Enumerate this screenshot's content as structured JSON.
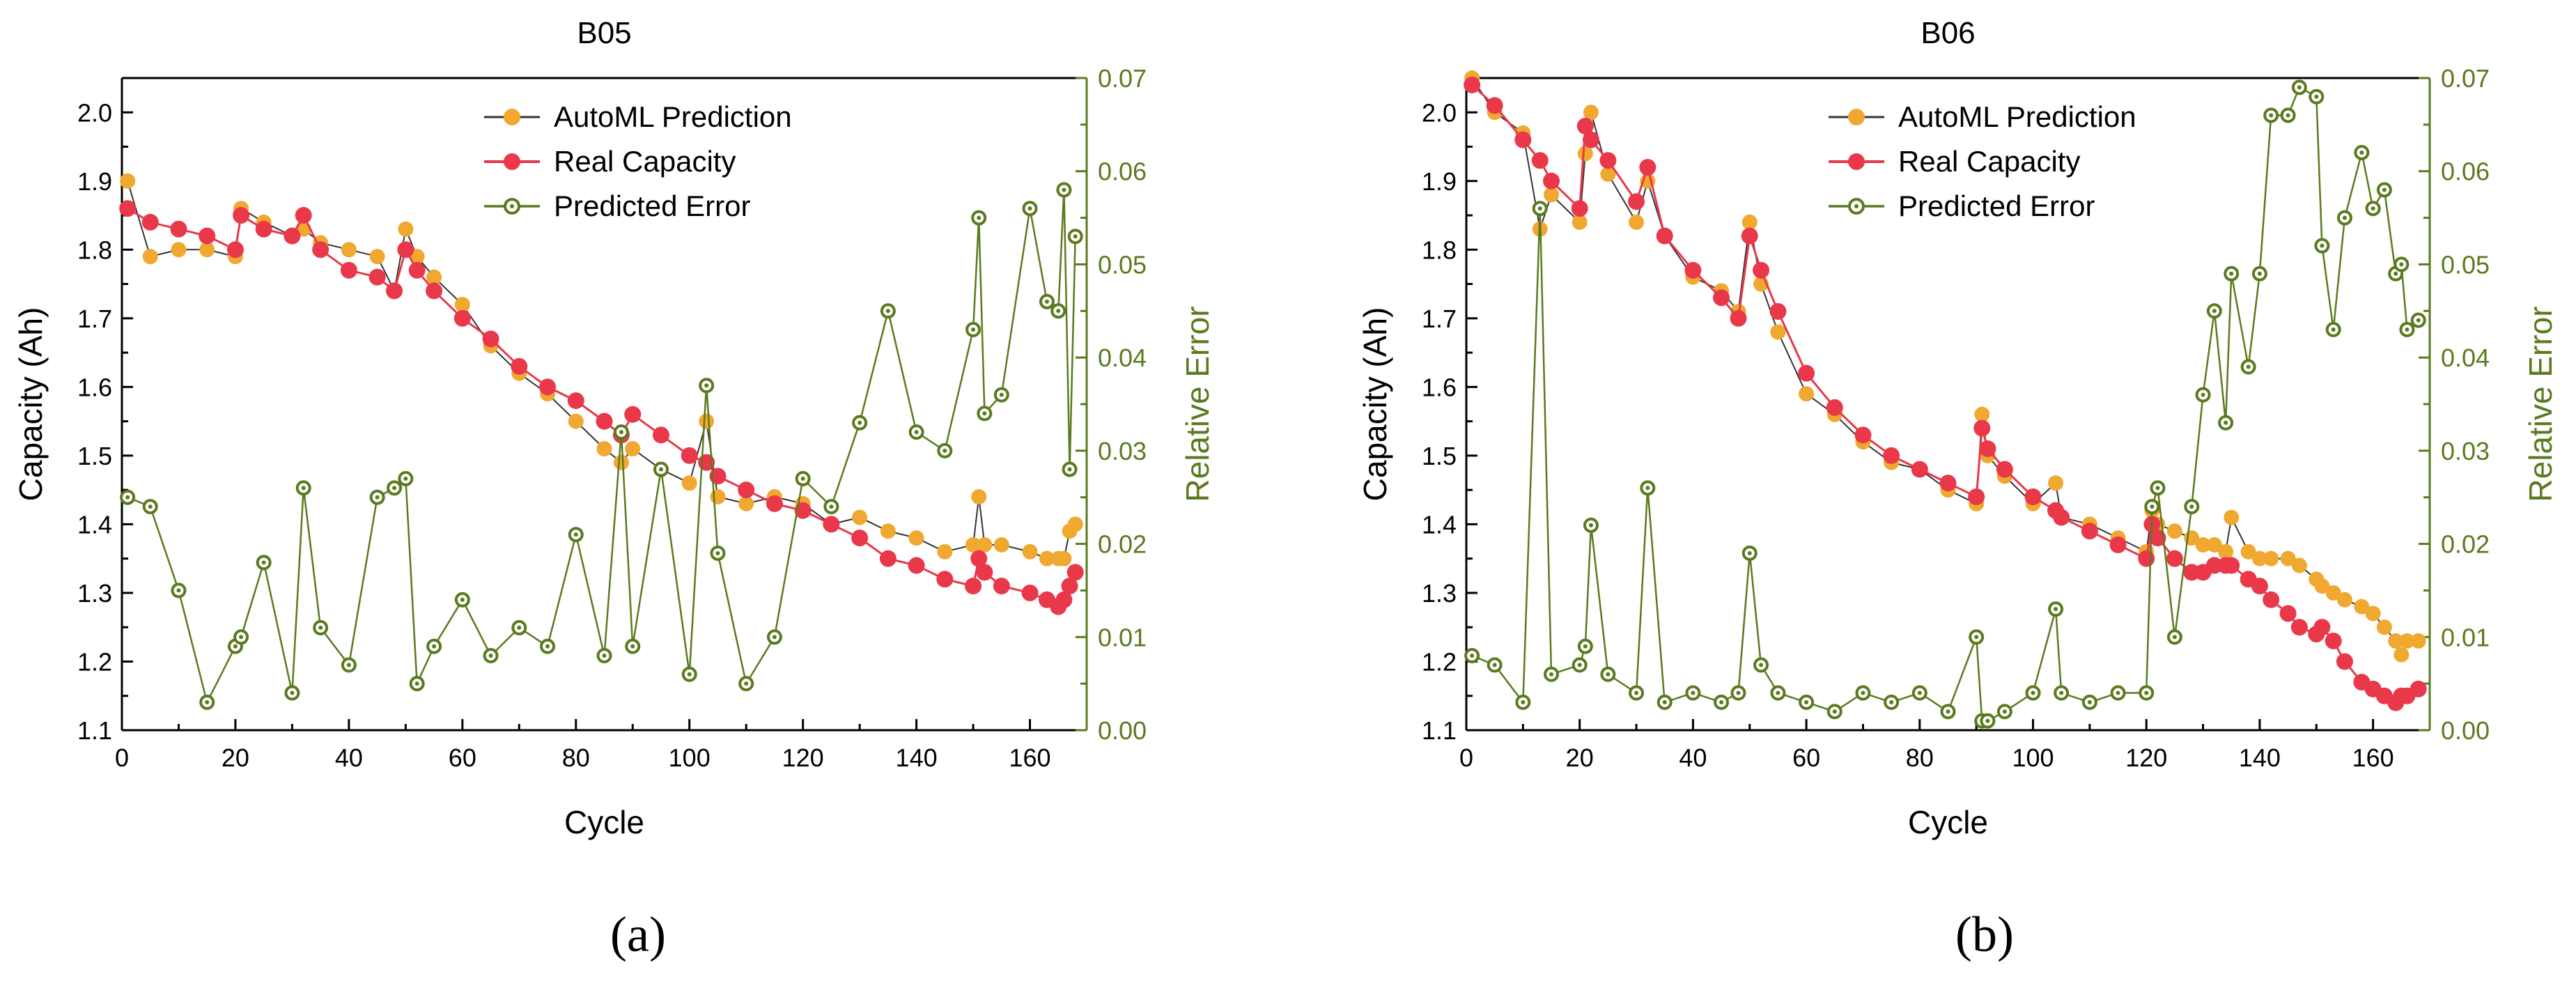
{
  "labels": {
    "panel_a": "(a)",
    "panel_b": "(b)"
  },
  "colors": {
    "prediction": "#f0a830",
    "real": "#e8384a",
    "error": "#5a7a1e",
    "line_dark": "#333333"
  },
  "chart_data": [
    {
      "type": "line",
      "title": "B05",
      "xlabel": "Cycle",
      "ylabel": "Capacity (Ah)",
      "y2label": "Relative Error",
      "xlim": [
        0,
        170
      ],
      "ylim": [
        1.1,
        2.05
      ],
      "y2lim": [
        0,
        0.07
      ],
      "xticks": [
        "0",
        "20",
        "40",
        "60",
        "80",
        "100",
        "120",
        "140",
        "160"
      ],
      "yticks": [
        "1.1",
        "1.2",
        "1.3",
        "1.4",
        "1.5",
        "1.6",
        "1.7",
        "1.8",
        "1.9",
        "2.0"
      ],
      "y2ticks": [
        "0.00",
        "0.01",
        "0.02",
        "0.03",
        "0.04",
        "0.05",
        "0.06",
        "0.07"
      ],
      "legend": [
        "AutoML Prediction",
        "Real Capacity",
        "Predicted Error"
      ],
      "legend_position": "top-center",
      "x": [
        1,
        5,
        10,
        15,
        20,
        21,
        25,
        30,
        32,
        35,
        40,
        45,
        48,
        50,
        52,
        55,
        60,
        65,
        70,
        75,
        80,
        85,
        88,
        90,
        95,
        100,
        103,
        105,
        110,
        115,
        120,
        125,
        130,
        135,
        140,
        145,
        150,
        151,
        152,
        155,
        160,
        163,
        165,
        166,
        167,
        168
      ],
      "series": [
        {
          "name": "AutoML Prediction",
          "axis": "left",
          "values": [
            1.9,
            1.79,
            1.8,
            1.8,
            1.79,
            1.86,
            1.84,
            1.82,
            1.83,
            1.81,
            1.8,
            1.79,
            1.74,
            1.83,
            1.79,
            1.76,
            1.72,
            1.66,
            1.62,
            1.59,
            1.55,
            1.51,
            1.49,
            1.51,
            1.48,
            1.46,
            1.55,
            1.44,
            1.43,
            1.44,
            1.43,
            1.4,
            1.41,
            1.39,
            1.38,
            1.36,
            1.37,
            1.44,
            1.37,
            1.37,
            1.36,
            1.35,
            1.35,
            1.35,
            1.39,
            1.4
          ]
        },
        {
          "name": "Real Capacity",
          "axis": "left",
          "values": [
            1.86,
            1.84,
            1.83,
            1.82,
            1.8,
            1.85,
            1.83,
            1.82,
            1.85,
            1.8,
            1.77,
            1.76,
            1.74,
            1.8,
            1.77,
            1.74,
            1.7,
            1.67,
            1.63,
            1.6,
            1.58,
            1.55,
            1.53,
            1.56,
            1.53,
            1.5,
            1.49,
            1.47,
            1.45,
            1.43,
            1.42,
            1.4,
            1.38,
            1.35,
            1.34,
            1.32,
            1.31,
            1.35,
            1.33,
            1.31,
            1.3,
            1.29,
            1.28,
            1.29,
            1.31,
            1.33
          ]
        },
        {
          "name": "Predicted Error",
          "axis": "right",
          "values": [
            0.025,
            0.024,
            0.015,
            0.003,
            0.009,
            0.01,
            0.018,
            0.004,
            0.026,
            0.011,
            0.007,
            0.025,
            0.026,
            0.027,
            0.005,
            0.009,
            0.014,
            0.008,
            0.011,
            0.009,
            0.021,
            0.008,
            0.032,
            0.009,
            0.028,
            0.006,
            0.037,
            0.019,
            0.005,
            0.01,
            0.027,
            0.024,
            0.033,
            0.045,
            0.032,
            0.03,
            0.043,
            0.055,
            0.034,
            0.036,
            0.056,
            0.046,
            0.045,
            0.058,
            0.028,
            0.053
          ]
        }
      ]
    },
    {
      "type": "line",
      "title": "B06",
      "xlabel": "Cycle",
      "ylabel": "Capacity (Ah)",
      "y2label": "Relative Error",
      "xlim": [
        0,
        170
      ],
      "ylim": [
        1.1,
        2.05
      ],
      "y2lim": [
        0,
        0.07
      ],
      "xticks": [
        "0",
        "20",
        "40",
        "60",
        "80",
        "100",
        "120",
        "140",
        "160"
      ],
      "yticks": [
        "1.1",
        "1.2",
        "1.3",
        "1.4",
        "1.5",
        "1.6",
        "1.7",
        "1.8",
        "1.9",
        "2.0"
      ],
      "y2ticks": [
        "0.00",
        "0.01",
        "0.02",
        "0.03",
        "0.04",
        "0.05",
        "0.06",
        "0.07"
      ],
      "legend": [
        "AutoML Prediction",
        "Real Capacity",
        "Predicted Error"
      ],
      "legend_position": "top-center",
      "x": [
        1,
        5,
        10,
        13,
        15,
        20,
        21,
        22,
        25,
        30,
        32,
        35,
        40,
        45,
        48,
        50,
        52,
        55,
        60,
        65,
        70,
        75,
        80,
        85,
        90,
        91,
        92,
        95,
        100,
        104,
        105,
        110,
        115,
        120,
        121,
        122,
        125,
        128,
        130,
        132,
        134,
        135,
        138,
        140,
        142,
        145,
        147,
        150,
        151,
        153,
        155,
        158,
        160,
        162,
        164,
        165,
        166,
        168
      ],
      "series": [
        {
          "name": "AutoML Prediction",
          "axis": "left",
          "values": [
            2.05,
            2.0,
            1.97,
            1.83,
            1.88,
            1.84,
            1.94,
            2.0,
            1.91,
            1.84,
            1.9,
            1.82,
            1.76,
            1.74,
            1.71,
            1.84,
            1.75,
            1.68,
            1.59,
            1.56,
            1.52,
            1.49,
            1.48,
            1.45,
            1.43,
            1.56,
            1.5,
            1.47,
            1.43,
            1.46,
            1.41,
            1.4,
            1.38,
            1.36,
            1.42,
            1.4,
            1.39,
            1.38,
            1.37,
            1.37,
            1.36,
            1.41,
            1.36,
            1.35,
            1.35,
            1.35,
            1.34,
            1.32,
            1.31,
            1.3,
            1.29,
            1.28,
            1.27,
            1.25,
            1.23,
            1.21,
            1.23,
            1.23
          ]
        },
        {
          "name": "Real Capacity",
          "axis": "left",
          "values": [
            2.04,
            2.01,
            1.96,
            1.93,
            1.9,
            1.86,
            1.98,
            1.96,
            1.93,
            1.87,
            1.92,
            1.82,
            1.77,
            1.73,
            1.7,
            1.82,
            1.77,
            1.71,
            1.62,
            1.57,
            1.53,
            1.5,
            1.48,
            1.46,
            1.44,
            1.54,
            1.51,
            1.48,
            1.44,
            1.42,
            1.41,
            1.39,
            1.37,
            1.35,
            1.4,
            1.38,
            1.35,
            1.33,
            1.33,
            1.34,
            1.34,
            1.34,
            1.32,
            1.31,
            1.29,
            1.27,
            1.25,
            1.24,
            1.25,
            1.23,
            1.2,
            1.17,
            1.16,
            1.15,
            1.14,
            1.15,
            1.15,
            1.16
          ]
        },
        {
          "name": "Predicted Error",
          "axis": "right",
          "values": [
            0.008,
            0.007,
            0.003,
            0.056,
            0.006,
            0.007,
            0.009,
            0.022,
            0.006,
            0.004,
            0.026,
            0.003,
            0.004,
            0.003,
            0.004,
            0.019,
            0.007,
            0.004,
            0.003,
            0.002,
            0.004,
            0.003,
            0.004,
            0.002,
            0.01,
            0.001,
            0.001,
            0.002,
            0.004,
            0.013,
            0.004,
            0.003,
            0.004,
            0.004,
            0.024,
            0.026,
            0.01,
            0.024,
            0.036,
            0.045,
            0.033,
            0.049,
            0.039,
            0.049,
            0.066,
            0.066,
            0.069,
            0.068,
            0.052,
            0.043,
            0.055,
            0.062,
            0.056,
            0.058,
            0.049,
            0.05,
            0.043,
            0.044
          ]
        }
      ]
    }
  ]
}
